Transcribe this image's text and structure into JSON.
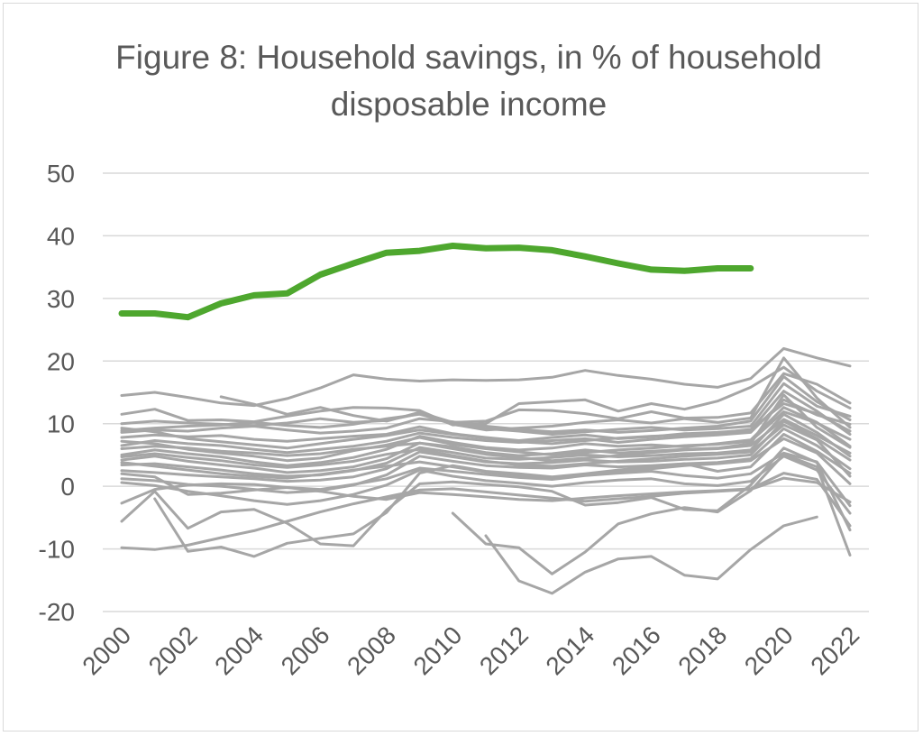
{
  "chart_data": {
    "type": "line",
    "title": "Figure 8: Household savings, in % of household disposable income",
    "xlabel": "",
    "ylabel": "",
    "ylim": [
      -20,
      50
    ],
    "yticks": [
      -20,
      -10,
      0,
      10,
      20,
      30,
      40,
      50
    ],
    "xticks": [
      "2000",
      "2002",
      "2004",
      "2006",
      "2008",
      "2010",
      "2012",
      "2014",
      "2016",
      "2018",
      "2020",
      "2022"
    ],
    "x": [
      2000,
      2001,
      2002,
      2003,
      2004,
      2005,
      2006,
      2007,
      2008,
      2009,
      2010,
      2011,
      2012,
      2013,
      2014,
      2015,
      2016,
      2017,
      2018,
      2019,
      2020,
      2021,
      2022
    ],
    "grid": true,
    "legend": "none",
    "highlight_color": "#4ea72e",
    "other_color": "#a6a6a6",
    "highlight_series": {
      "values": [
        27.6,
        27.6,
        27.0,
        29.2,
        30.5,
        30.8,
        33.8,
        35.6,
        37.3,
        37.6,
        38.4,
        38.0,
        38.1,
        37.7,
        36.7,
        35.6,
        34.6,
        34.4,
        34.8,
        34.8,
        null,
        null,
        null
      ]
    },
    "other_series": [
      {
        "values": [
          14.5,
          15.0,
          14.2,
          13.3,
          12.9,
          14.0,
          15.7,
          17.8,
          17.1,
          16.8,
          17.0,
          16.9,
          17.0,
          17.4,
          18.5,
          17.7,
          17.1,
          16.3,
          15.8,
          17.2,
          22.0,
          20.5,
          19.2
        ]
      },
      {
        "values": [
          11.5,
          12.3,
          10.5,
          10.6,
          10.3,
          11.2,
          12.0,
          12.6,
          12.5,
          12.1,
          9.8,
          10.0,
          13.2,
          13.5,
          13.8,
          12.0,
          13.2,
          12.3,
          13.6,
          15.8,
          19.0,
          15.2,
          12.5
        ]
      },
      {
        "values": [
          null,
          null,
          null,
          14.3,
          13.1,
          11.5,
          12.6,
          11.3,
          10.4,
          11.8,
          10.2,
          10.4,
          12.2,
          12.1,
          11.6,
          10.8,
          11.9,
          10.9,
          11.0,
          11.7,
          18.0,
          16.3,
          13.3
        ]
      },
      {
        "values": [
          10.0,
          10.4,
          10.1,
          9.9,
          9.7,
          10.1,
          10.8,
          10.2,
          10.5,
          11.6,
          9.9,
          9.0,
          9.3,
          9.6,
          10.2,
          10.6,
          10.1,
          10.8,
          10.2,
          10.9,
          20.5,
          14.1,
          9.4
        ]
      },
      {
        "values": [
          8.6,
          9.0,
          8.8,
          9.3,
          9.6,
          9.0,
          8.5,
          8.8,
          9.3,
          10.8,
          10.3,
          9.2,
          8.8,
          8.3,
          8.7,
          9.1,
          9.4,
          9.0,
          9.2,
          9.6,
          16.4,
          12.8,
          11.2
        ]
      },
      {
        "values": [
          7.8,
          8.2,
          7.9,
          8.1,
          7.5,
          7.2,
          7.6,
          8.0,
          8.3,
          9.5,
          8.4,
          7.8,
          7.3,
          7.8,
          8.2,
          7.6,
          7.9,
          8.4,
          8.6,
          9.0,
          15.2,
          12.0,
          8.3
        ]
      },
      {
        "values": [
          6.5,
          7.3,
          6.8,
          6.5,
          5.9,
          5.4,
          5.9,
          6.4,
          7.2,
          8.5,
          7.8,
          7.3,
          7.0,
          7.3,
          7.6,
          7.0,
          7.5,
          7.9,
          8.2,
          8.6,
          13.8,
          11.4,
          9.9
        ]
      },
      {
        "values": [
          5.0,
          5.8,
          5.2,
          4.7,
          3.9,
          3.3,
          3.8,
          4.6,
          5.9,
          8.0,
          7.0,
          6.2,
          5.8,
          6.1,
          6.8,
          6.4,
          6.6,
          6.3,
          6.8,
          7.4,
          12.6,
          10.2,
          6.4
        ]
      },
      {
        "values": [
          4.2,
          4.8,
          4.0,
          3.4,
          2.9,
          2.2,
          2.5,
          3.1,
          4.4,
          6.9,
          6.3,
          5.4,
          4.9,
          5.2,
          5.8,
          5.3,
          5.6,
          5.9,
          6.1,
          6.8,
          14.6,
          9.4,
          6.2
        ]
      },
      {
        "values": [
          3.4,
          3.6,
          3.1,
          2.6,
          2.0,
          1.6,
          1.8,
          2.5,
          3.7,
          6.2,
          5.4,
          4.5,
          4.3,
          4.6,
          5.0,
          4.7,
          4.9,
          5.2,
          5.3,
          5.8,
          11.5,
          8.6,
          4.8
        ]
      },
      {
        "values": [
          2.5,
          2.2,
          1.8,
          1.5,
          1.2,
          0.8,
          1.0,
          1.5,
          2.8,
          5.5,
          4.7,
          3.9,
          3.6,
          3.8,
          4.2,
          3.9,
          4.0,
          4.3,
          4.5,
          5.0,
          10.4,
          7.6,
          4.2
        ]
      },
      {
        "values": [
          1.2,
          0.9,
          0.3,
          0.0,
          -0.5,
          -1.0,
          -0.7,
          0.2,
          1.8,
          4.8,
          4.0,
          3.3,
          3.0,
          2.9,
          3.4,
          3.1,
          3.3,
          3.6,
          3.8,
          4.4,
          9.2,
          6.5,
          2.8
        ]
      },
      {
        "values": [
          8.9,
          9.3,
          9.6,
          9.8,
          10.2,
          9.7,
          9.4,
          9.9,
          10.8,
          11.5,
          10.1,
          9.6,
          9.1,
          8.7,
          9.0,
          8.6,
          8.9,
          9.3,
          9.6,
          10.4,
          17.5,
          13.5,
          10.6
        ]
      },
      {
        "values": [
          7.2,
          6.8,
          5.9,
          5.3,
          4.8,
          4.1,
          4.5,
          5.7,
          6.6,
          7.8,
          6.7,
          6.0,
          5.5,
          5.0,
          5.4,
          5.8,
          6.1,
          6.5,
          6.7,
          7.2,
          11.9,
          10.1,
          7.5
        ]
      },
      {
        "values": [
          6.0,
          6.4,
          6.1,
          5.6,
          5.3,
          4.9,
          5.2,
          5.9,
          6.4,
          6.9,
          6.0,
          5.1,
          4.6,
          4.1,
          4.5,
          4.9,
          5.4,
          5.8,
          6.0,
          6.5,
          10.7,
          8.1,
          5.3
        ]
      },
      {
        "values": [
          4.7,
          5.2,
          4.6,
          4.1,
          3.4,
          3.0,
          3.4,
          4.0,
          5.1,
          5.9,
          4.9,
          4.0,
          3.4,
          3.2,
          3.6,
          4.0,
          4.4,
          4.8,
          5.1,
          5.5,
          9.8,
          7.4,
          1.6
        ]
      },
      {
        "values": [
          2.0,
          1.5,
          -1.3,
          -1.1,
          -0.6,
          -0.2,
          -0.5,
          0.3,
          1.2,
          2.9,
          2.4,
          1.9,
          1.4,
          1.1,
          1.7,
          2.1,
          2.4,
          1.7,
          1.3,
          2.0,
          5.3,
          3.9,
          -3.1
        ]
      },
      {
        "values": [
          0.6,
          0.1,
          -0.8,
          -1.5,
          -2.3,
          -2.9,
          -2.3,
          -1.3,
          0.2,
          2.6,
          1.6,
          0.9,
          0.5,
          0.0,
          0.6,
          1.0,
          1.2,
          0.4,
          0.1,
          0.8,
          4.8,
          2.6,
          -4.3
        ]
      },
      {
        "values": [
          -2.7,
          -0.5,
          0.2,
          0.4,
          0.3,
          -0.2,
          -0.8,
          -1.6,
          -2.1,
          -1.0,
          -1.3,
          -1.7,
          -2.1,
          -2.3,
          -1.9,
          -1.5,
          -1.2,
          -0.9,
          -0.7,
          -0.4,
          2.1,
          1.1,
          -6.3
        ]
      },
      {
        "values": [
          -5.6,
          -0.8,
          -6.7,
          -4.1,
          -3.7,
          -5.9,
          -9.2,
          -9.5,
          -3.8,
          0.4,
          0.7,
          0.3,
          -0.1,
          -0.8,
          -3.0,
          -2.6,
          -1.8,
          -3.7,
          -3.9,
          0.2,
          6.1,
          3.8,
          -7.0
        ]
      },
      {
        "values": [
          null,
          -2.0,
          -10.4,
          -9.7,
          -11.2,
          -9.1,
          -8.3,
          -7.6,
          -4.2,
          2.1,
          3.3,
          2.4,
          2.0,
          1.5,
          2.0,
          2.6,
          3.1,
          3.6,
          2.4,
          3.1,
          8.3,
          5.6,
          2.1
        ]
      },
      {
        "values": [
          -9.8,
          -10.1,
          -9.4,
          -8.2,
          -7.1,
          -5.6,
          -4.1,
          -2.8,
          -1.7,
          -0.6,
          -0.4,
          -0.9,
          -1.4,
          -1.9,
          -2.4,
          -2.0,
          -1.6,
          -1.1,
          -0.8,
          -0.5,
          1.3,
          0.6,
          -2.5
        ]
      },
      {
        "values": [
          null,
          null,
          null,
          null,
          null,
          null,
          null,
          null,
          null,
          null,
          -4.3,
          -9.2,
          -9.8,
          -14.0,
          -10.5,
          -6.0,
          -4.4,
          -3.4,
          -4.1,
          -0.7,
          5.1,
          3.1,
          -11.0
        ]
      },
      {
        "values": [
          null,
          null,
          null,
          null,
          null,
          null,
          null,
          null,
          null,
          null,
          null,
          -7.9,
          -15.1,
          -17.1,
          -13.7,
          -11.6,
          -11.2,
          -14.2,
          -14.8,
          -10.1,
          -6.3,
          -4.9,
          null
        ]
      },
      {
        "values": [
          3.8,
          3.2,
          2.6,
          2.0,
          1.6,
          1.3,
          1.9,
          2.6,
          3.2,
          3.9,
          3.1,
          2.3,
          1.8,
          1.4,
          1.9,
          2.4,
          2.8,
          3.3,
          3.6,
          4.1,
          7.6,
          5.3,
          0.4
        ]
      },
      {
        "values": [
          9.3,
          8.7,
          7.6,
          7.1,
          6.6,
          6.1,
          6.8,
          7.5,
          8.1,
          9.0,
          8.3,
          7.7,
          7.1,
          6.8,
          7.3,
          7.7,
          8.0,
          8.2,
          8.5,
          9.1,
          13.2,
          11.6,
          8.8
        ]
      }
    ]
  }
}
